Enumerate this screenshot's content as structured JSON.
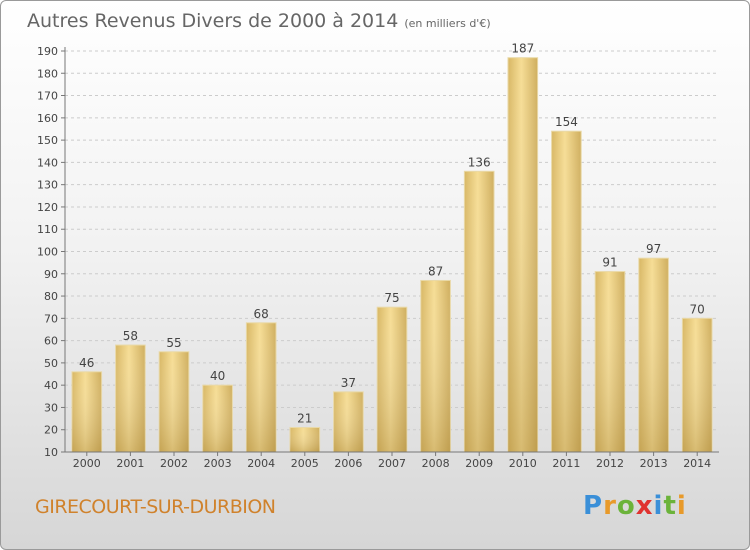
{
  "chart_data": {
    "type": "bar",
    "title": "Autres Revenus Divers de 2000 à 2014",
    "subtitle": "(en milliers d'€)",
    "categories": [
      "2000",
      "2001",
      "2002",
      "2003",
      "2004",
      "2005",
      "2006",
      "2007",
      "2008",
      "2009",
      "2010",
      "2011",
      "2012",
      "2013",
      "2014"
    ],
    "values": [
      46,
      58,
      55,
      40,
      68,
      21,
      37,
      75,
      87,
      136,
      187,
      154,
      91,
      97,
      70
    ],
    "ylim": [
      10,
      190
    ],
    "ytick_step": 10,
    "grid": true,
    "xlabel": "",
    "ylabel": "",
    "bar_color": "#e6c77a",
    "city": "GIRECOURT-SUR-DURBION"
  },
  "logo": {
    "letters": [
      "P",
      "r",
      "o",
      "x",
      "i",
      "t",
      "i"
    ],
    "colors": [
      "#3a8fd8",
      "#e89a2a",
      "#6bb33a",
      "#e0322f",
      "#3a8fd8",
      "#6bb33a",
      "#e89a2a"
    ]
  }
}
